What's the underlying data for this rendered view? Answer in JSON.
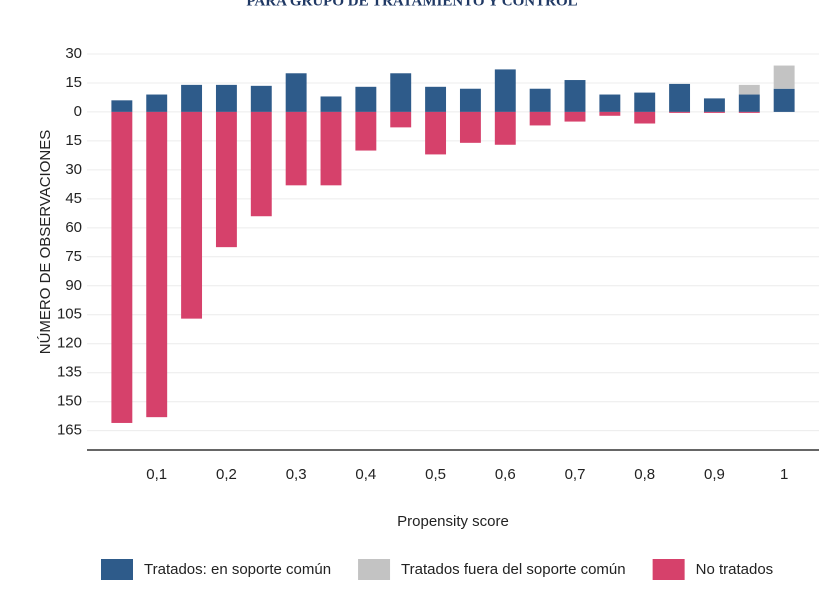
{
  "chart_data": {
    "type": "bar",
    "title": "PARA GRUPO DE TRATAMIENTO Y CONTROL",
    "x_label": "Propensity score",
    "y_label": "NÚMERO DE OBSERVACIONES",
    "stacked": true,
    "x": [
      0.05,
      0.1,
      0.15,
      0.2,
      0.25,
      0.3,
      0.35,
      0.4,
      0.45,
      0.5,
      0.55,
      0.6,
      0.65,
      0.7,
      0.75,
      0.8,
      0.85,
      0.9,
      0.95,
      1.0
    ],
    "series": [
      {
        "name": "Tratados: en soporte común",
        "color": "#2e5b8a",
        "values": [
          6,
          9,
          14,
          14,
          13.5,
          20,
          8,
          13,
          20,
          13,
          12,
          22,
          12,
          16.5,
          9,
          10,
          14.5,
          7,
          9,
          12
        ]
      },
      {
        "name": "Tratados fuera del soporte común",
        "color": "#c3c3c3",
        "values": [
          0,
          0,
          0,
          0,
          0,
          0,
          0,
          0,
          0,
          0,
          0,
          0,
          0,
          0,
          0,
          0,
          0,
          0,
          5,
          12
        ]
      },
      {
        "name": "No tratados",
        "color": "#d6416b",
        "values": [
          -161,
          -158,
          -107,
          -70,
          -54,
          -38,
          -38,
          -20,
          -8,
          -22,
          -16,
          -17,
          -7,
          -5,
          -2,
          -6,
          -0.5,
          -0.5,
          -0.5,
          0
        ]
      }
    ],
    "xlim": [
      0,
      1.05
    ],
    "xticks": [
      {
        "value": 0.1,
        "label": "0,1"
      },
      {
        "value": 0.2,
        "label": "0,2"
      },
      {
        "value": 0.3,
        "label": "0,3"
      },
      {
        "value": 0.4,
        "label": "0,4"
      },
      {
        "value": 0.5,
        "label": "0,5"
      },
      {
        "value": 0.6,
        "label": "0,6"
      },
      {
        "value": 0.7,
        "label": "0,7"
      },
      {
        "value": 0.8,
        "label": "0,8"
      },
      {
        "value": 0.9,
        "label": "0,9"
      },
      1
    ],
    "ylim": [
      -175,
      35
    ],
    "yticks": [
      30,
      15,
      0,
      {
        "value": -15,
        "label": "15"
      },
      {
        "value": -30,
        "label": "30"
      },
      {
        "value": -45,
        "label": "45"
      },
      {
        "value": -60,
        "label": "60"
      },
      {
        "value": -75,
        "label": "75"
      },
      {
        "value": -90,
        "label": "90"
      },
      {
        "value": -105,
        "label": "105"
      },
      {
        "value": -120,
        "label": "120"
      },
      {
        "value": -135,
        "label": "135"
      },
      {
        "value": -150,
        "label": "150"
      },
      {
        "value": -165,
        "label": "165"
      }
    ],
    "grid": true,
    "legend": "bottom"
  }
}
